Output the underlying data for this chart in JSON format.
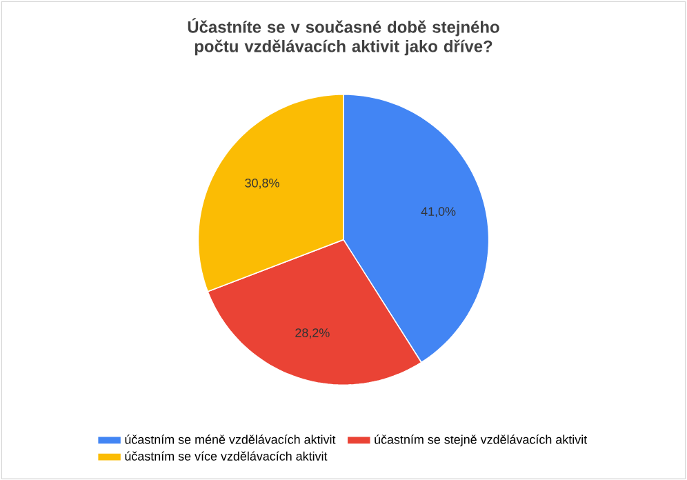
{
  "chart_data": {
    "type": "pie",
    "title": "Účastníte se v současné době stejného počtu vzdělávacích aktivit jako dříve?",
    "categories": [
      "účastním se méně vzdělávacích aktivit",
      "účastním se stejně vzdělávacích aktivit",
      "účastním se více vzdělávacích aktivit"
    ],
    "values": [
      41.0,
      28.2,
      30.8
    ],
    "value_labels": [
      "41,0%",
      "28,2%",
      "30,8%"
    ],
    "colors": [
      "#4285f4",
      "#ea4335",
      "#fbbc04"
    ],
    "legend": "bottom"
  }
}
